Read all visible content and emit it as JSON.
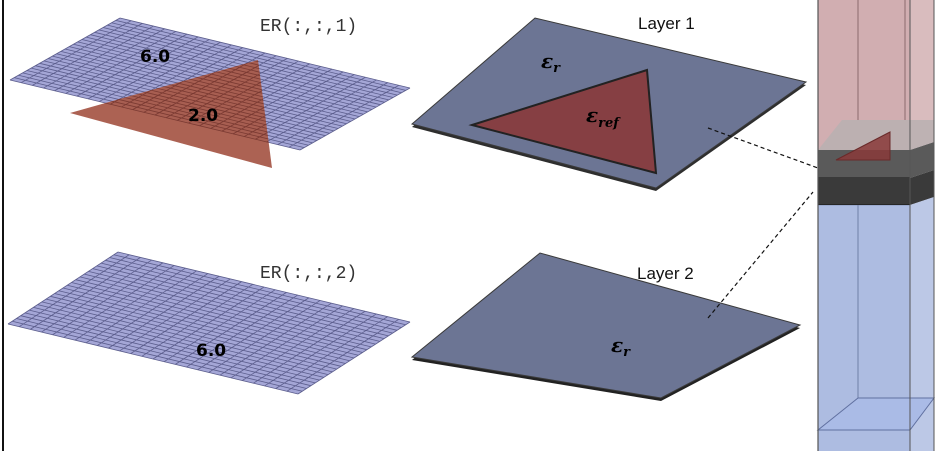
{
  "grids": {
    "layer1": {
      "label": "ER(:,:,1)",
      "outer_value": "6.0",
      "inner_value": "2.0"
    },
    "layer2": {
      "label": "ER(:,:,2)",
      "value": "6.0"
    }
  },
  "layers": {
    "layer1": {
      "title": "Layer 1",
      "eps_outer_symbol": "ε",
      "eps_outer_subscript": "r",
      "eps_inner_symbol": "ε",
      "eps_inner_subscript": "ref"
    },
    "layer2": {
      "title": "Layer 2",
      "eps_symbol": "ε",
      "eps_subscript": "r"
    }
  },
  "colors": {
    "grid_fill": "#a4a6d6",
    "grid_line": "#5b5d8c",
    "triangle_fill": "#a85a4a",
    "plate_fill": "#6c7594",
    "plate_triangle": "#8a3a3a",
    "top_column": "#c9a0a3",
    "bottom_column": "#9fb0dc",
    "layer_band": "#3a3a3a"
  }
}
